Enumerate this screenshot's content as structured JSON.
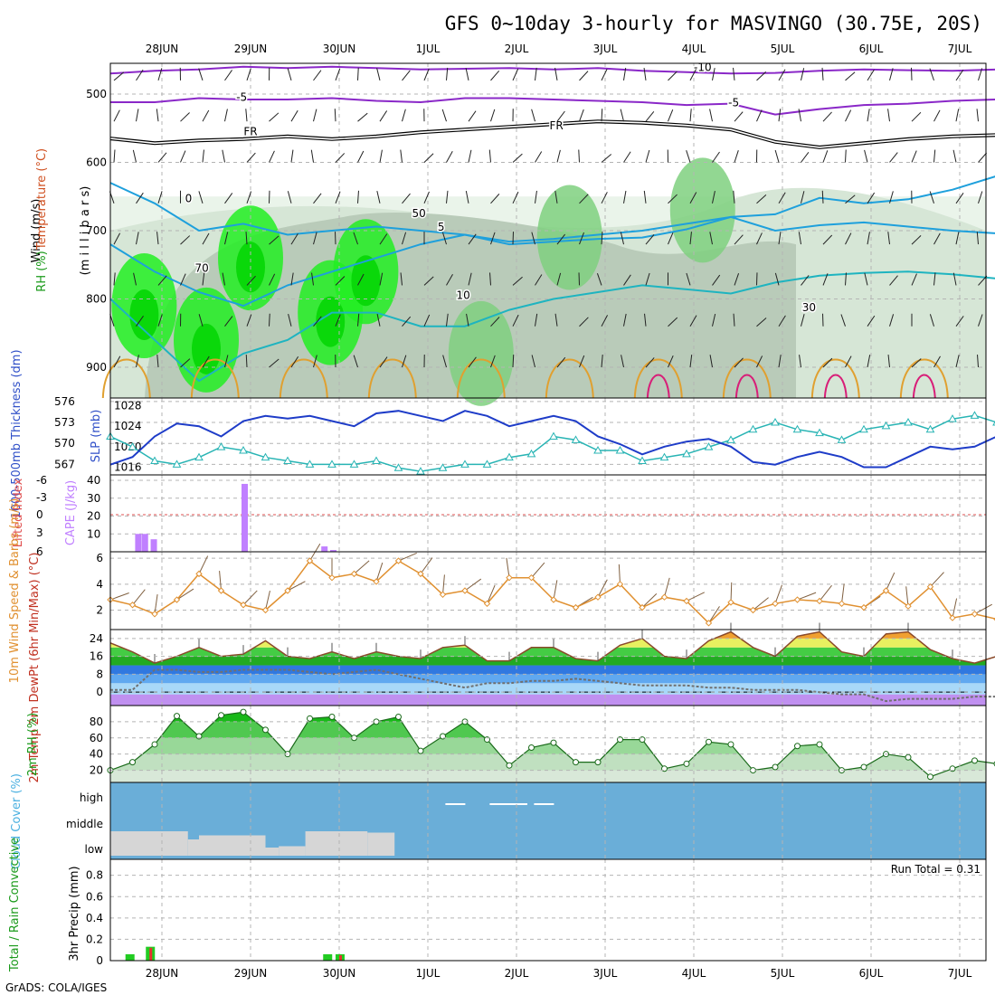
{
  "title": "GFS 0~10day 3-hourly for MASVINGO (30.75E, 20S)",
  "footer": "GrADS: COLA/IGES",
  "dates": [
    "28JUN",
    "29JUN",
    "30JUN",
    "1JUL",
    "2JUL",
    "3JUL",
    "4JUL",
    "5JUL",
    "6JUL",
    "7JUL"
  ],
  "colors": {
    "grid": "#b4b4b4",
    "purple": "#8a28c8",
    "cyan": "#1ea0dc",
    "teal": "#1eb4c0",
    "orange": "#e0a030",
    "magenta": "#d81e78",
    "slp": "#1e3cc8",
    "thick": "#28b4b4",
    "cape": "#c080ff",
    "wind": "#e09030",
    "cloud_bg": "#6aaed8",
    "cloud_low": "#d6d6d6",
    "precip_total": "#22cc22",
    "precip_conv": "#e83030"
  },
  "chart_data": [
    {
      "type": "contour",
      "panel": "upper-air",
      "ylabel_parts": [
        "RH (%)",
        "Temperature (°C)",
        "Wind (m/s)"
      ],
      "ylabel2": "(m i l l i b a r s)",
      "y_ticks": [
        500,
        600,
        700,
        800,
        900
      ],
      "contour_labels": [
        "-10",
        "-5",
        "FR",
        "0",
        "5",
        "10",
        "70",
        "50",
        "30"
      ],
      "series": [
        {
          "name": "-10",
          "x": [
            0,
            0.5,
            1,
            1.5,
            2,
            2.5,
            3,
            3.5,
            4,
            4.5,
            5,
            5.5,
            6,
            6.5,
            7,
            7.5,
            8,
            8.5,
            9,
            9.5,
            10
          ],
          "y": [
            470,
            466,
            464,
            460,
            462,
            460,
            462,
            464,
            463,
            462,
            464,
            462,
            466,
            468,
            470,
            469,
            466,
            464,
            465,
            466,
            464
          ]
        },
        {
          "name": "-5",
          "x": [
            0,
            0.5,
            1,
            1.5,
            2,
            2.5,
            3,
            3.5,
            4,
            4.5,
            5,
            5.5,
            6,
            6.5,
            7,
            7.5,
            8,
            8.5,
            9,
            9.5,
            10
          ],
          "y": [
            512,
            512,
            506,
            508,
            508,
            506,
            510,
            512,
            506,
            506,
            508,
            510,
            512,
            516,
            514,
            530,
            522,
            516,
            514,
            510,
            508
          ]
        },
        {
          "name": "FR",
          "x": [
            0,
            0.5,
            1,
            1.5,
            2,
            2.5,
            3,
            3.5,
            4,
            4.5,
            5,
            5.5,
            6,
            6.5,
            7,
            7.5,
            8,
            8.5,
            9,
            9.5,
            10
          ],
          "y": [
            565,
            572,
            568,
            566,
            562,
            566,
            562,
            556,
            552,
            548,
            544,
            540,
            542,
            546,
            552,
            570,
            578,
            572,
            566,
            562,
            560
          ]
        },
        {
          "name": "0",
          "x": [
            0,
            0.5,
            1,
            1.5,
            2,
            2.5,
            3,
            3.5,
            4,
            4.5,
            5,
            5.5,
            6,
            6.5,
            7,
            7.5,
            8,
            8.5,
            9,
            9.5,
            10
          ],
          "y": [
            630,
            660,
            700,
            690,
            706,
            700,
            694,
            700,
            706,
            720,
            716,
            712,
            710,
            698,
            680,
            676,
            652,
            660,
            654,
            640,
            620
          ]
        },
        {
          "name": "5",
          "x": [
            0,
            0.5,
            1,
            1.5,
            2,
            2.5,
            3,
            3.5,
            4,
            4.5,
            5,
            5.5,
            6,
            6.5,
            7,
            7.5,
            8,
            8.5,
            9,
            9.5,
            10
          ],
          "y": [
            720,
            760,
            790,
            810,
            780,
            760,
            740,
            720,
            706,
            716,
            712,
            706,
            700,
            690,
            680,
            700,
            692,
            688,
            694,
            700,
            704
          ]
        },
        {
          "name": "10",
          "x": [
            0,
            0.5,
            1,
            1.5,
            2,
            2.5,
            3,
            3.5,
            4,
            4.5,
            5,
            5.5,
            6,
            6.5,
            7,
            7.5,
            8,
            8.5,
            9,
            9.5,
            10
          ],
          "y": [
            800,
            860,
            920,
            880,
            860,
            820,
            820,
            840,
            840,
            816,
            800,
            790,
            780,
            786,
            792,
            776,
            766,
            762,
            760,
            764,
            770
          ]
        }
      ],
      "rh_cores": [
        {
          "x": 0.3,
          "p": 810,
          "rh": 90
        },
        {
          "x": 1.0,
          "p": 860,
          "rh": 90
        },
        {
          "x": 1.5,
          "p": 740,
          "rh": 90
        },
        {
          "x": 2.4,
          "p": 820,
          "rh": 90
        },
        {
          "x": 2.8,
          "p": 760,
          "rh": 90
        },
        {
          "x": 4.1,
          "p": 880,
          "rh": 70
        },
        {
          "x": 5.1,
          "p": 710,
          "rh": 70
        },
        {
          "x": 6.6,
          "p": 670,
          "rh": 70
        }
      ]
    },
    {
      "type": "line",
      "panel": "slp-thickness",
      "ylabel": "1000-500mb Thickness (dm)",
      "ylabel2": "SLP (mb)",
      "left_ticks": [
        567,
        570,
        573,
        576
      ],
      "right_ticks": [
        1016,
        1020,
        1024,
        1028
      ],
      "x": [
        0,
        0.25,
        0.5,
        0.75,
        1,
        1.25,
        1.5,
        1.75,
        2,
        2.25,
        2.5,
        2.75,
        3,
        3.25,
        3.5,
        3.75,
        4,
        4.25,
        4.5,
        4.75,
        5,
        5.25,
        5.5,
        5.75,
        6,
        6.25,
        6.5,
        6.75,
        7,
        7.25,
        7.5,
        7.75,
        8,
        8.25,
        8.5,
        8.75,
        9,
        9.25,
        9.5,
        9.75,
        10
      ],
      "series": [
        {
          "name": "SLP",
          "axis": "right",
          "values": [
            1016.5,
            1018,
            1022,
            1024.5,
            1024,
            1022,
            1025,
            1026,
            1025.5,
            1026,
            1025,
            1024,
            1026.5,
            1027,
            1026,
            1025,
            1027,
            1026,
            1024,
            1025,
            1026,
            1025,
            1022,
            1020.5,
            1018.5,
            1020,
            1021,
            1021.5,
            1020,
            1017,
            1016.5,
            1018,
            1019,
            1018,
            1016,
            1016,
            1018,
            1020,
            1019.5,
            1020,
            1022
          ]
        },
        {
          "name": "Thickness",
          "axis": "left",
          "values": [
            571,
            569.5,
            567.5,
            567,
            568,
            569.5,
            569,
            568,
            567.5,
            567,
            567,
            567,
            567.5,
            566.5,
            566,
            566.5,
            567,
            567,
            568,
            568.5,
            571,
            570.5,
            569,
            569,
            567.5,
            568,
            568.5,
            569.5,
            570.5,
            572,
            573,
            572,
            571.5,
            570.5,
            572,
            572.5,
            573,
            572,
            573.5,
            574,
            573
          ]
        }
      ]
    },
    {
      "type": "bar",
      "panel": "cape-li",
      "ylabel": "Lifted Index",
      "ylabel2": "CAPE (J/kg)",
      "left_ticks": [
        "-6",
        "-3",
        "0",
        "3",
        "6"
      ],
      "right_ticks": [
        10,
        20,
        30,
        40
      ],
      "x": [
        0.3,
        0.375,
        0.475,
        1.5,
        2.4,
        2.5
      ],
      "values": [
        10,
        10,
        7,
        38,
        3,
        1
      ]
    },
    {
      "type": "line",
      "panel": "wind10m",
      "ylabel": "10m Wind Speed & Barbs (m/s)",
      "y_ticks": [
        2,
        4,
        6
      ],
      "x": [
        0,
        0.25,
        0.5,
        0.75,
        1,
        1.25,
        1.5,
        1.75,
        2,
        2.25,
        2.5,
        2.75,
        3,
        3.25,
        3.5,
        3.75,
        4,
        4.25,
        4.5,
        4.75,
        5,
        5.25,
        5.5,
        5.75,
        6,
        6.25,
        6.5,
        6.75,
        7,
        7.25,
        7.5,
        7.75,
        8,
        8.25,
        8.5,
        8.75,
        9,
        9.25,
        9.5,
        9.75,
        10
      ],
      "values": [
        2.8,
        2.4,
        1.7,
        2.8,
        4.8,
        3.5,
        2.4,
        2.0,
        3.5,
        5.8,
        4.5,
        4.8,
        4.2,
        5.8,
        4.8,
        3.2,
        3.5,
        2.5,
        4.5,
        4.5,
        2.8,
        2.2,
        3.0,
        4.0,
        2.2,
        3.0,
        2.7,
        1.0,
        2.6,
        2.0,
        2.5,
        2.8,
        2.7,
        2.5,
        2.2,
        3.5,
        2.3,
        3.8,
        1.4,
        1.7,
        1.3
      ]
    },
    {
      "type": "area",
      "panel": "temp-dewpt",
      "ylabel": "2m Temp 2m DewPt (6hr Min/Max) (°C)",
      "y_ticks": [
        0,
        8,
        16,
        24
      ],
      "x": [
        0,
        0.25,
        0.5,
        0.75,
        1,
        1.25,
        1.5,
        1.75,
        2,
        2.25,
        2.5,
        2.75,
        3,
        3.25,
        3.5,
        3.75,
        4,
        4.25,
        4.5,
        4.75,
        5,
        5.25,
        5.5,
        5.75,
        6,
        6.25,
        6.5,
        6.75,
        7,
        7.25,
        7.5,
        7.75,
        8,
        8.25,
        8.5,
        8.75,
        9,
        9.25,
        9.5,
        9.75,
        10
      ],
      "series": [
        {
          "name": "2m Temp",
          "values": [
            22,
            18,
            13,
            16,
            20,
            16,
            17,
            23,
            16,
            15,
            18,
            15,
            18,
            16,
            15,
            20,
            21,
            14,
            14,
            20,
            20,
            15,
            14,
            21,
            24,
            16,
            15,
            23,
            27,
            20,
            16,
            25,
            27,
            18,
            16,
            26,
            27,
            19,
            15,
            13,
            16
          ]
        },
        {
          "name": "2m DewPt",
          "values": [
            1,
            1,
            10,
            10,
            9,
            9,
            10,
            10,
            10,
            9,
            8,
            9,
            10,
            8,
            6,
            4,
            2,
            4,
            4,
            5,
            5,
            6,
            5,
            4,
            3,
            3,
            3,
            2,
            2,
            1,
            1,
            1,
            0,
            -1,
            -1,
            -4,
            -3,
            -3,
            -3,
            -2,
            -2
          ]
        }
      ]
    },
    {
      "type": "area",
      "panel": "rh2m",
      "ylabel": "2m RH (%)",
      "y_ticks": [
        20,
        40,
        60,
        80
      ],
      "x": [
        0,
        0.25,
        0.5,
        0.75,
        1,
        1.25,
        1.5,
        1.75,
        2,
        2.25,
        2.5,
        2.75,
        3,
        3.25,
        3.5,
        3.75,
        4,
        4.25,
        4.5,
        4.75,
        5,
        5.25,
        5.5,
        5.75,
        6,
        6.25,
        6.5,
        6.75,
        7,
        7.25,
        7.5,
        7.75,
        8,
        8.25,
        8.5,
        8.75,
        9,
        9.25,
        9.5,
        9.75,
        10
      ],
      "values": [
        20,
        30,
        52,
        87,
        62,
        88,
        92,
        70,
        40,
        84,
        86,
        60,
        80,
        86,
        44,
        62,
        80,
        58,
        26,
        48,
        54,
        30,
        30,
        58,
        58,
        22,
        28,
        55,
        52,
        20,
        24,
        50,
        52,
        20,
        24,
        40,
        36,
        12,
        22,
        32,
        28
      ]
    },
    {
      "type": "bar",
      "panel": "cloud",
      "ylabel": "Cloud Cover (%)",
      "y_ticks": [
        "high",
        "middle",
        "low"
      ],
      "series": [
        {
          "name": "low",
          "x": [
            0,
            0.75,
            0.875,
            1,
            1.5,
            1.75,
            1.9,
            2.2,
            2.5,
            2.9
          ],
          "values": [
            90,
            90,
            60,
            75,
            75,
            30,
            35,
            90,
            90,
            85
          ]
        },
        {
          "name": "high",
          "x": [
            3.8,
            4.3,
            4.5,
            4.8
          ],
          "values": [
            100,
            100,
            100,
            100
          ]
        }
      ]
    },
    {
      "type": "bar",
      "panel": "precip",
      "ylabel": "3hr Precip (mm)",
      "ylabel2": "Total / Rain Convective",
      "annotation": "Run Total = 0.31",
      "y_ticks": [
        0,
        0.2,
        0.4,
        0.6,
        0.8
      ],
      "series": [
        {
          "name": "Total",
          "x": [
            0.15,
            0.38,
            2.38,
            2.52
          ],
          "values": [
            0.06,
            0.13,
            0.06,
            0.06
          ]
        },
        {
          "name": "Convective",
          "x": [
            0.38,
            2.52
          ],
          "values": [
            0.12,
            0.05
          ]
        }
      ]
    }
  ]
}
